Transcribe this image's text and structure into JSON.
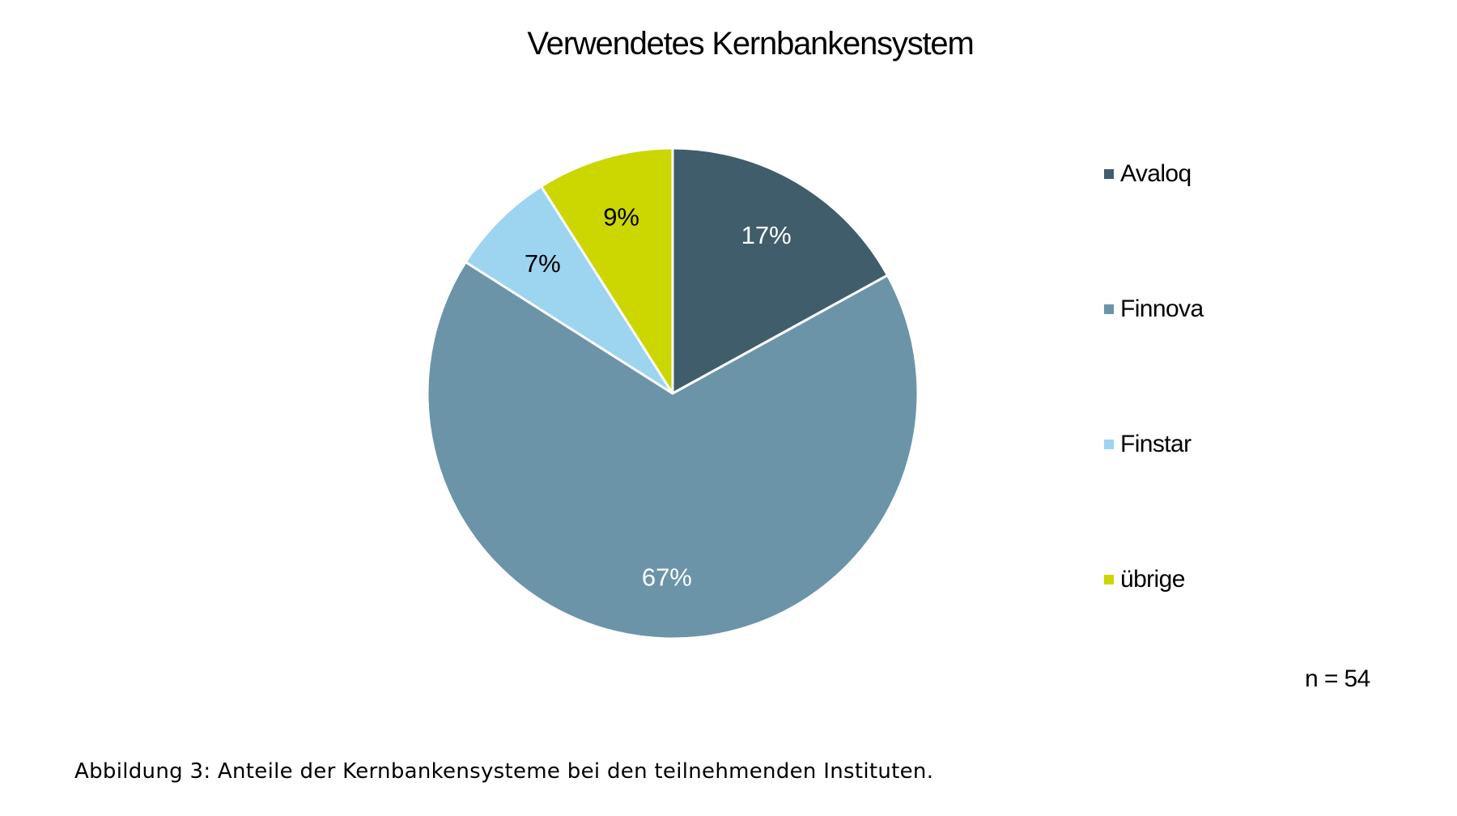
{
  "chart_data": {
    "type": "pie",
    "title": "Verwendetes Kernbankensystem",
    "categories": [
      "Avaloq",
      "Finnova",
      "Finstar",
      "übrige"
    ],
    "values": [
      17,
      67,
      7,
      9
    ],
    "value_labels": [
      "17%",
      "67%",
      "7%",
      "9%"
    ],
    "colors": [
      "#405D6B",
      "#6B94A8",
      "#9DD4F0",
      "#CCD600"
    ],
    "label_colors": [
      "#ffffff",
      "#ffffff",
      "#000000",
      "#000000"
    ],
    "legend": {
      "placement": "right",
      "entries": [
        "Avaloq",
        "Finnova",
        "Finstar",
        "übrige"
      ]
    },
    "sample_size": "n = 54"
  },
  "caption": "Abbildung 3: Anteile der Kernbankensysteme bei den teilnehmenden Instituten."
}
